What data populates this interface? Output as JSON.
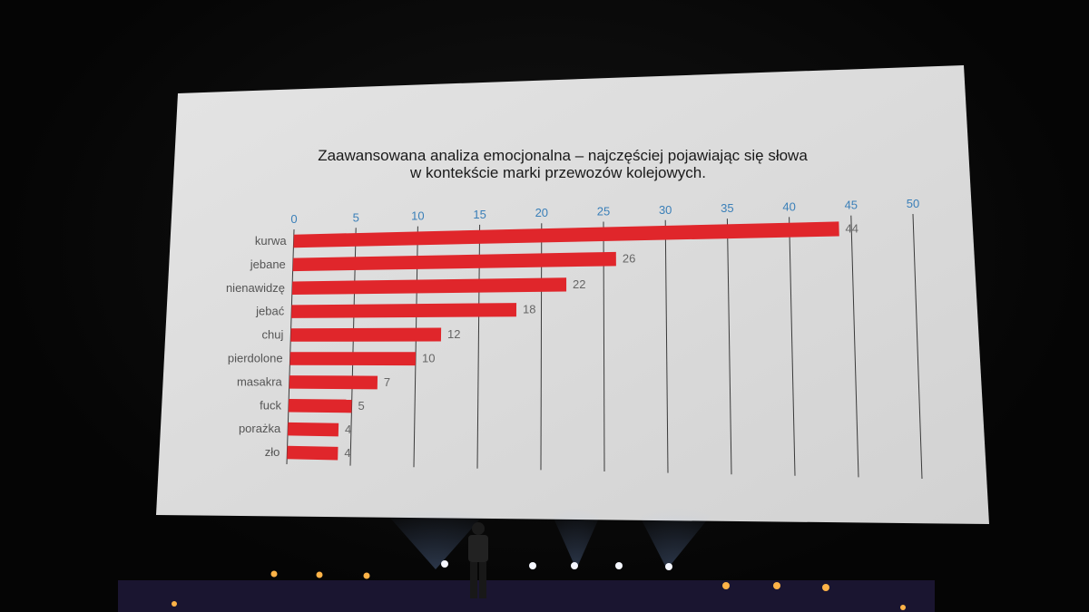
{
  "chart_data": {
    "type": "bar",
    "orientation": "horizontal",
    "title": "Zaawansowana analiza emocjonalna – najczęściej pojawiając się słowa",
    "subtitle": "w kontekście marki przewozów kolejowych.",
    "categories": [
      "kurwa",
      "jebane",
      "nienawidzę",
      "jebać",
      "chuj",
      "pierdolone",
      "masakra",
      "fuck",
      "porażka",
      "zło"
    ],
    "values": [
      44,
      26,
      22,
      18,
      12,
      10,
      7,
      5,
      4,
      4
    ],
    "value_labels": [
      "44",
      "26",
      "22",
      "18",
      "12",
      "10",
      "7",
      "5",
      "4",
      "4"
    ],
    "xlim": [
      0,
      50
    ],
    "x_ticks": [
      "0",
      "5",
      "10",
      "15",
      "20",
      "25",
      "30",
      "35",
      "40",
      "45",
      "50"
    ],
    "x_axis_position": "top",
    "grid": true,
    "bar_color": "#e0262b"
  }
}
